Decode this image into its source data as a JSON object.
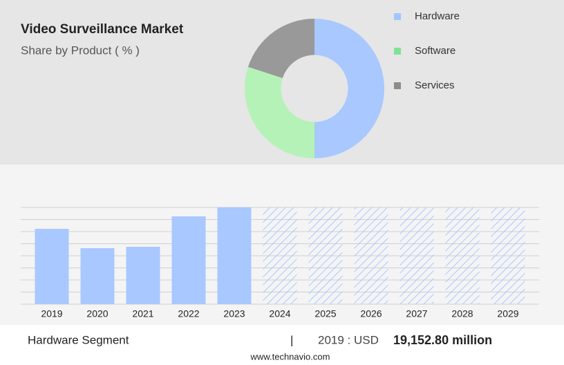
{
  "chart_data": [
    {
      "type": "pie",
      "title": "Video Surveillance Market",
      "subtitle": "Share by Product ( % )",
      "categories": [
        "Hardware",
        "Software",
        "Services"
      ],
      "values": [
        50,
        30,
        20
      ],
      "colors": [
        "#a8c8ff",
        "#b5f2b8",
        "#999999"
      ],
      "legend_colors": [
        "#a3c5ff",
        "#7ee396",
        "#8c8c8c"
      ],
      "hole": 0.48
    },
    {
      "type": "bar",
      "categories": [
        "2019",
        "2020",
        "2021",
        "2022",
        "2023",
        "2024",
        "2025",
        "2026",
        "2027",
        "2028",
        "2029"
      ],
      "values": [
        19152.8,
        14230,
        14580,
        22320,
        24600,
        null,
        null,
        null,
        null,
        null,
        null
      ],
      "color": "#a8c8ff",
      "ylim": [
        0,
        24600
      ],
      "yticks": [
        0,
        3075,
        6150,
        9225,
        12300,
        15375,
        18450,
        21525,
        24600
      ],
      "grid": true
    }
  ],
  "footer": {
    "segment": "Hardware Segment",
    "separator": "|",
    "year_label": "2019 : USD",
    "value": "19,152.80 million",
    "source": "www.technavio.com"
  }
}
